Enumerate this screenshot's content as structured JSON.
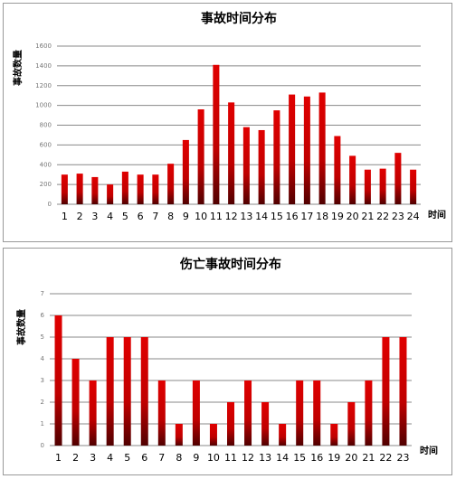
{
  "chart_data": [
    {
      "type": "bar",
      "title": "事故时间分布",
      "y_label": "事故数量",
      "x_label": "时间",
      "categories": [
        "1",
        "2",
        "3",
        "4",
        "5",
        "6",
        "7",
        "8",
        "9",
        "10",
        "11",
        "12",
        "13",
        "14",
        "15",
        "16",
        "17",
        "18",
        "19",
        "20",
        "21",
        "22",
        "23",
        "24"
      ],
      "values": [
        300,
        310,
        275,
        200,
        330,
        300,
        300,
        410,
        650,
        960,
        1410,
        1030,
        780,
        750,
        950,
        1110,
        1090,
        1130,
        690,
        490,
        350,
        360,
        520,
        350
      ],
      "color": "#d40000",
      "ylim": [
        0,
        1600
      ],
      "yticks": [
        0,
        200,
        400,
        600,
        800,
        1000,
        1200,
        1400,
        1600
      ],
      "grid": true
    },
    {
      "type": "bar",
      "title": "伤亡事故时间分布",
      "y_label": "事故数量",
      "x_label": "时间",
      "categories": [
        "1",
        "2",
        "3",
        "4",
        "5",
        "6",
        "7",
        "8",
        "9",
        "10",
        "11",
        "12",
        "13",
        "14",
        "15",
        "16",
        "19",
        "20",
        "21",
        "22",
        "23"
      ],
      "values": [
        6,
        4,
        3,
        5,
        5,
        5,
        3,
        1,
        3,
        1,
        2,
        3,
        2,
        1,
        3,
        3,
        1,
        2,
        3,
        5,
        5
      ],
      "color": "#d40000",
      "ylim": [
        0,
        7
      ],
      "yticks": [
        0,
        1,
        2,
        3,
        4,
        5,
        6,
        7
      ],
      "grid": true
    }
  ]
}
